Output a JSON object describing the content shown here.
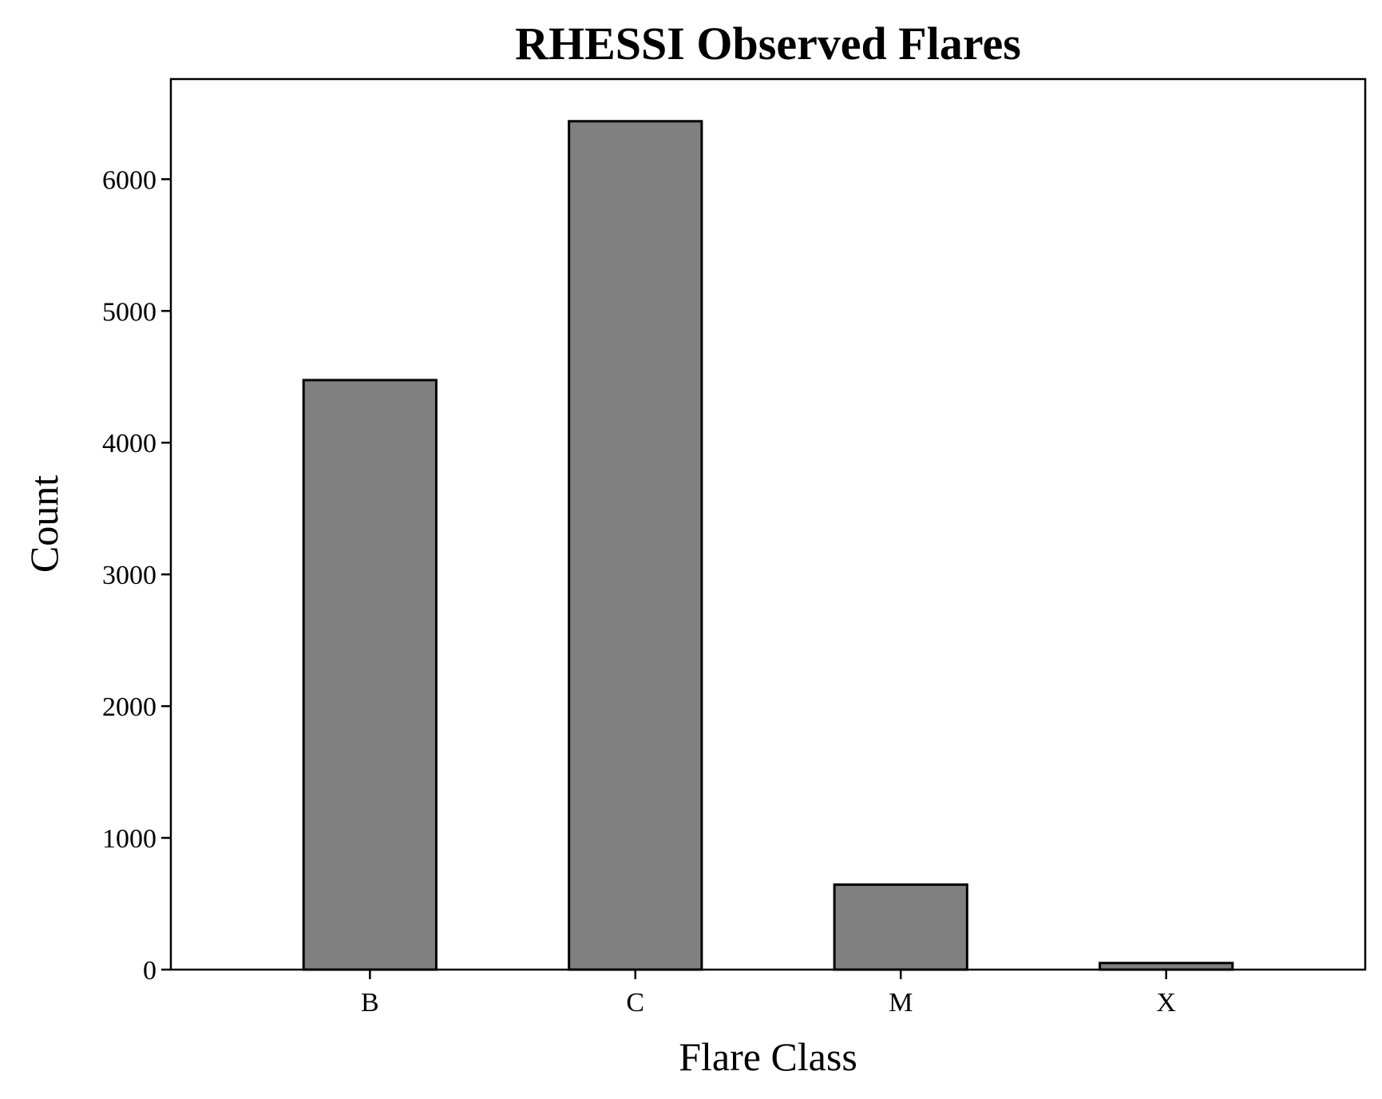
{
  "chart_data": {
    "type": "bar",
    "title": "RHESSI Observed Flares",
    "xlabel": "Flare Class",
    "ylabel": "Count",
    "categories": [
      "B",
      "C",
      "M",
      "X"
    ],
    "values": [
      4475,
      6440,
      645,
      50
    ],
    "ylim": [
      0,
      6760
    ],
    "yticks": [
      0,
      1000,
      2000,
      3000,
      4000,
      5000,
      6000
    ],
    "yticks_labels": [
      "0",
      "1000",
      "2000",
      "3000",
      "4000",
      "5000",
      "6000"
    ],
    "grid": false,
    "legend": "none",
    "bar_color": "#808080",
    "edge_color": "#000000"
  }
}
